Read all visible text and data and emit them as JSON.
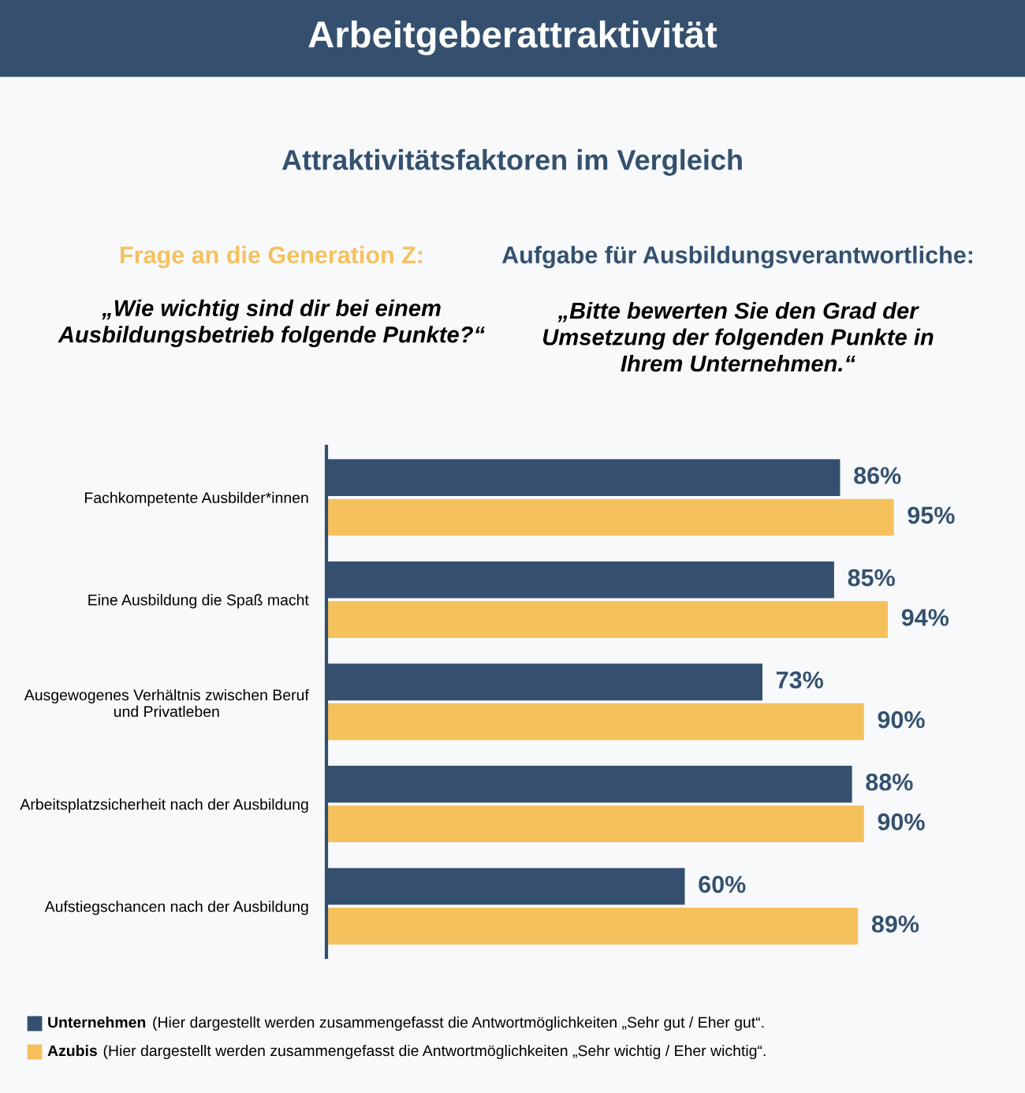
{
  "chart_data": {
    "type": "bar",
    "orientation": "horizontal",
    "title": "Arbeitgeberattraktivität",
    "subtitle": "Attraktivitätsfaktoren im Vergleich",
    "categories": [
      "Fachkompetente Ausbilder*innen",
      "Eine Ausbildung die Spaß macht",
      "Ausgewogenes Verhältnis zwischen Beruf\nund Privatleben",
      "Arbeitsplatzsicherheit nach der Ausbildung",
      "Aufstiegschancen nach der Ausbildung"
    ],
    "series": [
      {
        "name": "Unternehmen",
        "color": "#34506e",
        "values": [
          86,
          85,
          73,
          88,
          60
        ],
        "value_labels": [
          "86%",
          "85%",
          "73%",
          "88%",
          "60%"
        ]
      },
      {
        "name": "Azubis",
        "color": "#f5c15c",
        "values": [
          95,
          94,
          90,
          90,
          89
        ],
        "value_labels": [
          "95%",
          "94%",
          "90%",
          "90%",
          "89%"
        ]
      }
    ],
    "tick_labels": "y",
    "grid": false,
    "legend": "bottom",
    "annotations": [
      "Frage an die Generation Z:",
      "„Wie wichtig sind dir bei einem\nAusbildungsbetrieb folgende Punkte?“",
      "Aufgabe für Ausbildungsverantwortliche:",
      "„Bitte bewerten Sie den Grad der\nUmsetzung der folgenden Punkte in\nIhrem Unternehmen.“",
      "(Hier dargestellt werden zusammengefasst die Antwortmöglichkeiten „Sehr gut / Eher gut“.",
      "(Hier dargestellt werden zusammengefasst die Antwortmöglichkeiten „Sehr wichtig / Eher wichtig“."
    ]
  }
}
